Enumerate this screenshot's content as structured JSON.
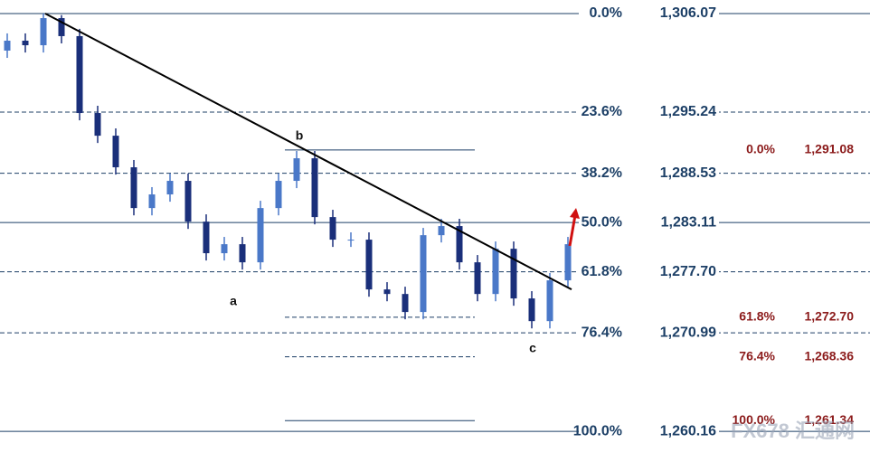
{
  "chart_data": {
    "type": "candlestick",
    "ylim": [
      1256.8,
      1307.56
    ],
    "up_color": "#4a78c8",
    "down_color": "#1a2f7a",
    "categories": [
      null,
      null,
      null,
      null,
      null,
      null,
      null,
      null,
      null,
      null,
      null,
      null,
      null,
      null,
      null,
      null,
      null,
      null,
      null,
      null,
      null,
      null,
      null,
      null,
      null,
      null,
      null,
      null,
      null,
      null,
      null,
      null
    ],
    "open": [
      1302.0,
      1303.09,
      1302.59,
      1305.57,
      1303.59,
      1295.14,
      1292.65,
      1289.18,
      1284.7,
      1286.2,
      1287.69,
      1283.21,
      1279.74,
      1280.73,
      1278.74,
      1284.7,
      1287.69,
      1290.17,
      1283.71,
      1281.23,
      1281.23,
      1275.76,
      1275.26,
      1273.28,
      1281.72,
      1282.72,
      1278.74,
      1275.26,
      1280.23,
      1274.77,
      1272.28,
      1276.76
    ],
    "high": [
      1303.89,
      1303.89,
      1306.07,
      1305.9,
      1304.39,
      1295.94,
      1293.45,
      1289.98,
      1287.0,
      1288.49,
      1288.49,
      1284.01,
      1281.53,
      1281.53,
      1285.5,
      1288.49,
      1290.97,
      1290.97,
      1284.51,
      1282.03,
      1282.03,
      1276.56,
      1276.06,
      1282.52,
      1283.52,
      1283.52,
      1279.54,
      1281.03,
      1281.03,
      1275.57,
      1277.56,
      1281.53
    ],
    "low": [
      1301.2,
      1301.79,
      1301.79,
      1302.79,
      1294.34,
      1291.85,
      1288.38,
      1283.9,
      1283.9,
      1285.4,
      1282.41,
      1278.94,
      1278.94,
      1277.94,
      1277.94,
      1283.9,
      1286.89,
      1282.91,
      1280.43,
      1280.43,
      1274.96,
      1274.46,
      1272.48,
      1272.48,
      1280.92,
      1277.94,
      1274.46,
      1274.46,
      1273.97,
      1271.48,
      1271.48,
      1275.96
    ],
    "close": [
      1303.09,
      1302.59,
      1305.57,
      1303.59,
      1295.14,
      1292.65,
      1289.18,
      1284.7,
      1286.2,
      1287.69,
      1283.21,
      1279.74,
      1280.73,
      1278.74,
      1284.7,
      1287.69,
      1290.17,
      1283.71,
      1281.23,
      1281.23,
      1275.76,
      1275.26,
      1273.28,
      1281.72,
      1282.72,
      1278.74,
      1275.26,
      1280.23,
      1274.77,
      1272.28,
      1276.76,
      1280.73
    ],
    "fib_levels": [
      {
        "label": "0.0%",
        "price": {
          "value": 1306.07,
          "label": "1,306.07"
        },
        "dashed": false
      },
      {
        "label": "23.6%",
        "price": {
          "value": 1295.24,
          "label": "1,295.24"
        },
        "dashed": true
      },
      {
        "label": "38.2%",
        "price": {
          "value": 1288.53,
          "label": "1,288.53"
        },
        "dashed": true
      },
      {
        "label": "50.0%",
        "price": {
          "value": 1283.11,
          "label": "1,283.11"
        },
        "dashed": false
      },
      {
        "label": "61.8%",
        "price": {
          "value": 1277.7,
          "label": "1,277.70"
        },
        "dashed": true
      },
      {
        "label": "76.4%",
        "price": {
          "value": 1270.99,
          "label": "1,270.99"
        },
        "dashed": true
      },
      {
        "label": "100.0%",
        "price": {
          "value": 1260.16,
          "label": "1,260.16"
        },
        "dashed": false
      }
    ],
    "fib_color": "#1c3f66",
    "fib_levels_2": [
      {
        "label": "0.0%",
        "price": {
          "value": 1291.08,
          "label": "1,291.08"
        },
        "dashed": false
      },
      {
        "label": "61.8%",
        "price": {
          "value": 1272.7,
          "label": "1,272.70"
        },
        "dashed": true
      },
      {
        "label": "76.4%",
        "price": {
          "value": 1268.36,
          "label": "1,268.36"
        },
        "dashed": true
      },
      {
        "label": "100.0%",
        "price": {
          "value": 1261.34,
          "label": "1,261.34"
        },
        "dashed": false
      }
    ],
    "fib_2_color": "#8b1a1a",
    "trendline": [
      1306.07,
      1275.76
    ],
    "annotations": [
      "a",
      "b",
      "c"
    ],
    "watermark": "FX678 汇通网"
  }
}
